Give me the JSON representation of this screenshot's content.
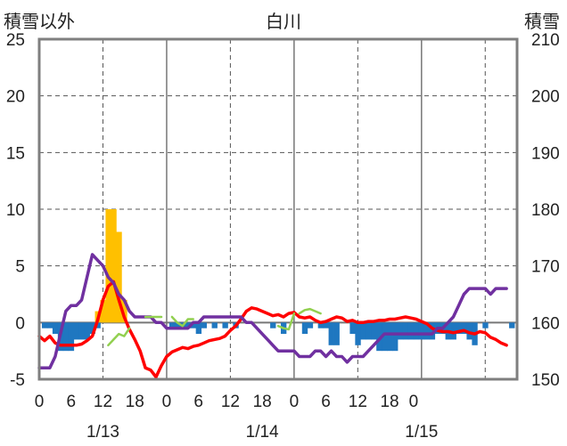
{
  "chart_data": {
    "type": "bar+line",
    "title": "白川",
    "ylabel_left": "積雪以外",
    "ylabel_right": "積雪",
    "left_axis": {
      "min": -5,
      "max": 25,
      "ticks": [
        25,
        20,
        15,
        10,
        5,
        0,
        -5
      ]
    },
    "right_axis": {
      "min": 150,
      "max": 210,
      "ticks": [
        210,
        200,
        190,
        180,
        170,
        160,
        150
      ]
    },
    "x_axis": {
      "hour_ticks": [
        "0",
        "6",
        "12",
        "18",
        "0",
        "6",
        "12",
        "18",
        "0",
        "6",
        "12",
        "18",
        "0"
      ],
      "date_labels": [
        "1/13",
        "1/14",
        "1/15"
      ]
    },
    "grid": true,
    "colors": {
      "precip": "#ffc000",
      "sunshine": "#1f77c0",
      "temperature": "#ff0000",
      "snow_depth": "#7030a0",
      "wind": "#92d050"
    },
    "series": [
      {
        "key": "precip",
        "type": "bar",
        "axis": "left",
        "points": [
          [
            11,
            1
          ],
          [
            12,
            2
          ],
          [
            13,
            10
          ],
          [
            14,
            10
          ],
          [
            15,
            8
          ],
          [
            16,
            2
          ]
        ]
      },
      {
        "key": "sunshine",
        "type": "bar",
        "axis": "left",
        "points": [
          [
            1,
            -0.5
          ],
          [
            2,
            -0.5
          ],
          [
            3,
            -1
          ],
          [
            4,
            -2.5
          ],
          [
            5,
            -2.5
          ],
          [
            6,
            -2.5
          ],
          [
            7,
            -1.5
          ],
          [
            8,
            -1.5
          ],
          [
            9,
            -1.5
          ],
          [
            10,
            -1
          ],
          [
            11,
            -0.5
          ],
          [
            25,
            -0.5
          ],
          [
            26,
            -0.5
          ],
          [
            27,
            -0.5
          ],
          [
            28,
            -0.5
          ],
          [
            29,
            -0.5
          ],
          [
            30,
            -1
          ],
          [
            31,
            -0.5
          ],
          [
            33,
            -0.5
          ],
          [
            35,
            -0.5
          ],
          [
            37,
            -0.5
          ],
          [
            44,
            -0.5
          ],
          [
            46,
            -1
          ],
          [
            50,
            -1
          ],
          [
            51,
            -0.5
          ],
          [
            53,
            -0.5
          ],
          [
            54,
            -0.5
          ],
          [
            55,
            -2
          ],
          [
            56,
            -2
          ],
          [
            59,
            -1
          ],
          [
            60,
            -2
          ],
          [
            61,
            -1.5
          ],
          [
            62,
            -1.5
          ],
          [
            63,
            -1.5
          ],
          [
            64,
            -2.5
          ],
          [
            65,
            -2.5
          ],
          [
            66,
            -2.5
          ],
          [
            67,
            -2.5
          ],
          [
            68,
            -1.5
          ],
          [
            69,
            -1.5
          ],
          [
            70,
            -1.5
          ],
          [
            71,
            -1.5
          ],
          [
            72,
            -1.5
          ],
          [
            73,
            -1.5
          ],
          [
            74,
            -1.5
          ],
          [
            75,
            -1
          ],
          [
            76,
            -1
          ],
          [
            77,
            -1.5
          ],
          [
            78,
            -1.5
          ],
          [
            79,
            -1
          ],
          [
            80,
            -1
          ],
          [
            81,
            -1.5
          ],
          [
            82,
            -2
          ],
          [
            84,
            -0.5
          ],
          [
            89,
            -0.5
          ]
        ]
      },
      {
        "key": "temperature",
        "type": "line",
        "axis": "left",
        "points": [
          [
            0,
            -1.2
          ],
          [
            1,
            -1.6
          ],
          [
            2,
            -1.2
          ],
          [
            3,
            -1.8
          ],
          [
            4,
            -2
          ],
          [
            5,
            -2
          ],
          [
            6,
            -2
          ],
          [
            7,
            -2
          ],
          [
            8,
            -1.9
          ],
          [
            9,
            -1.6
          ],
          [
            10,
            -1.2
          ],
          [
            11,
            0.2
          ],
          [
            12,
            2
          ],
          [
            13,
            3.2
          ],
          [
            14,
            3.6
          ],
          [
            15,
            2
          ],
          [
            16,
            0.5
          ],
          [
            17,
            -0.6
          ],
          [
            18,
            -1.5
          ],
          [
            19,
            -2.5
          ],
          [
            20,
            -4
          ],
          [
            21,
            -4.2
          ],
          [
            22,
            -4.8
          ],
          [
            23,
            -3.8
          ],
          [
            24,
            -3
          ],
          [
            25,
            -2.6
          ],
          [
            26,
            -2.4
          ],
          [
            27,
            -2.2
          ],
          [
            28,
            -2.3
          ],
          [
            29,
            -2.1
          ],
          [
            30,
            -2
          ],
          [
            31,
            -1.8
          ],
          [
            32,
            -1.6
          ],
          [
            33,
            -1.5
          ],
          [
            34,
            -1.4
          ],
          [
            35,
            -1.2
          ],
          [
            36,
            -0.7
          ],
          [
            37,
            -0.3
          ],
          [
            38,
            0.3
          ],
          [
            39,
            1
          ],
          [
            40,
            1.3
          ],
          [
            41,
            1.2
          ],
          [
            42,
            1
          ],
          [
            43,
            0.8
          ],
          [
            44,
            0.6
          ],
          [
            45,
            0.7
          ],
          [
            46,
            0.5
          ],
          [
            47,
            0.8
          ],
          [
            48,
            0.9
          ],
          [
            49,
            0.5
          ],
          [
            50,
            0.4
          ],
          [
            51,
            0.5
          ],
          [
            52,
            0.2
          ],
          [
            53,
            0
          ],
          [
            54,
            0.1
          ],
          [
            55,
            0.3
          ],
          [
            56,
            0.5
          ],
          [
            57,
            0.4
          ],
          [
            58,
            0.1
          ],
          [
            59,
            0.2
          ],
          [
            60,
            0
          ],
          [
            61,
            0
          ],
          [
            62,
            0.1
          ],
          [
            63,
            0.1
          ],
          [
            64,
            0.2
          ],
          [
            65,
            0.2
          ],
          [
            66,
            0.3
          ],
          [
            67,
            0.3
          ],
          [
            68,
            0.4
          ],
          [
            69,
            0.5
          ],
          [
            70,
            0.4
          ],
          [
            71,
            0.3
          ],
          [
            72,
            0.1
          ],
          [
            73,
            -0.1
          ],
          [
            74,
            -0.5
          ],
          [
            75,
            -0.7
          ],
          [
            76,
            -0.8
          ],
          [
            77,
            -0.8
          ],
          [
            78,
            -0.9
          ],
          [
            79,
            -0.8
          ],
          [
            80,
            -0.7
          ],
          [
            81,
            -0.9
          ],
          [
            82,
            -1
          ],
          [
            83,
            -0.8
          ],
          [
            84,
            -0.9
          ],
          [
            85,
            -1.3
          ],
          [
            86,
            -1.5
          ],
          [
            87,
            -1.8
          ],
          [
            88,
            -2
          ]
        ]
      },
      {
        "key": "snow_depth",
        "type": "line",
        "axis": "right",
        "points": [
          [
            0,
            152
          ],
          [
            1,
            152
          ],
          [
            2,
            152
          ],
          [
            3,
            154
          ],
          [
            4,
            158
          ],
          [
            5,
            162
          ],
          [
            6,
            163
          ],
          [
            7,
            163
          ],
          [
            8,
            164
          ],
          [
            9,
            168
          ],
          [
            10,
            172
          ],
          [
            11,
            171
          ],
          [
            12,
            170
          ],
          [
            13,
            168
          ],
          [
            14,
            167
          ],
          [
            15,
            165
          ],
          [
            16,
            164
          ],
          [
            17,
            162
          ],
          [
            18,
            161
          ],
          [
            19,
            161
          ],
          [
            20,
            161
          ],
          [
            21,
            161
          ],
          [
            22,
            160
          ],
          [
            23,
            160
          ],
          [
            24,
            159
          ],
          [
            25,
            159
          ],
          [
            26,
            159
          ],
          [
            27,
            159
          ],
          [
            28,
            159
          ],
          [
            29,
            160
          ],
          [
            30,
            160
          ],
          [
            31,
            161
          ],
          [
            32,
            161
          ],
          [
            33,
            161
          ],
          [
            34,
            161
          ],
          [
            35,
            161
          ],
          [
            36,
            161
          ],
          [
            37,
            161
          ],
          [
            38,
            161
          ],
          [
            39,
            160
          ],
          [
            40,
            160
          ],
          [
            41,
            159
          ],
          [
            42,
            158
          ],
          [
            43,
            157
          ],
          [
            44,
            156
          ],
          [
            45,
            155
          ],
          [
            46,
            155
          ],
          [
            47,
            155
          ],
          [
            48,
            155
          ],
          [
            49,
            154
          ],
          [
            50,
            154
          ],
          [
            51,
            154
          ],
          [
            52,
            155
          ],
          [
            53,
            155
          ],
          [
            54,
            154
          ],
          [
            55,
            155
          ],
          [
            56,
            154
          ],
          [
            57,
            154
          ],
          [
            58,
            153
          ],
          [
            59,
            154
          ],
          [
            60,
            154
          ],
          [
            61,
            154
          ],
          [
            62,
            155
          ],
          [
            63,
            156
          ],
          [
            64,
            157
          ],
          [
            65,
            158
          ],
          [
            66,
            158
          ],
          [
            67,
            158
          ],
          [
            68,
            158
          ],
          [
            69,
            158
          ],
          [
            70,
            158
          ],
          [
            71,
            158
          ],
          [
            72,
            158
          ],
          [
            73,
            158
          ],
          [
            74,
            158
          ],
          [
            75,
            159
          ],
          [
            76,
            159
          ],
          [
            77,
            160
          ],
          [
            78,
            161
          ],
          [
            79,
            163
          ],
          [
            80,
            165
          ],
          [
            81,
            166
          ],
          [
            82,
            166
          ],
          [
            83,
            166
          ],
          [
            84,
            166
          ],
          [
            85,
            165
          ],
          [
            86,
            166
          ],
          [
            87,
            166
          ],
          [
            88,
            166
          ]
        ]
      },
      {
        "key": "wind",
        "type": "line",
        "axis": "left",
        "segments": [
          [
            [
              13,
              -2
            ],
            [
              14,
              -1.5
            ],
            [
              15,
              -1
            ],
            [
              16,
              -1.2
            ],
            [
              17,
              -0.5
            ]
          ],
          [
            [
              20,
              0.5
            ],
            [
              21,
              0.5
            ],
            [
              22,
              0.5
            ],
            [
              23,
              0.5
            ]
          ],
          [
            [
              25,
              0.5
            ],
            [
              26,
              0
            ],
            [
              27,
              -0.3
            ],
            [
              28,
              0.3
            ],
            [
              29,
              0.3
            ]
          ],
          [
            [
              45,
              -0.3
            ],
            [
              46,
              -0.5
            ],
            [
              47,
              -0.6
            ],
            [
              48,
              0.8
            ]
          ],
          [
            [
              49,
              0.8
            ],
            [
              50,
              1.1
            ],
            [
              51,
              1.2
            ],
            [
              52,
              1
            ],
            [
              53,
              0.8
            ]
          ]
        ]
      }
    ]
  }
}
